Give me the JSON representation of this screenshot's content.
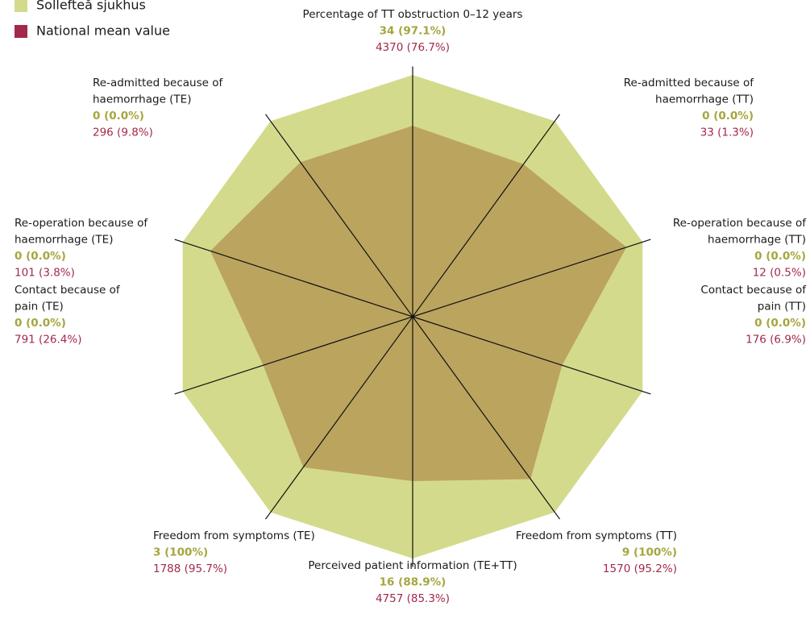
{
  "chart_data": {
    "type": "radar",
    "rlim": [
      0,
      100
    ],
    "axes": [
      [
        "Percentage of TT obstruction 0–12 years"
      ],
      [
        "Re-admitted because of",
        "haemorrhage (TT)"
      ],
      [
        "Re-operation because of",
        "haemorrhage (TT)"
      ],
      [
        "Contact because of",
        "pain (TT)"
      ],
      [
        "Freedom from symptoms (TT)"
      ],
      [
        "Perceived patient information (TE+TT)"
      ],
      [
        "Freedom from symptoms (TE)"
      ],
      [
        "Contact because of",
        "pain (TE)"
      ],
      [
        "Re-operation because of",
        "haemorrhage (TE)"
      ],
      [
        "Re-admitted because of",
        "haemorrhage (TE)"
      ]
    ],
    "series": [
      {
        "name": "Sollefteå sjukhus",
        "color": "#d4da8c",
        "label_color": "#a5a63e",
        "values": [
          100,
          100,
          100,
          100,
          100,
          100,
          100,
          100,
          100,
          100
        ],
        "labels": [
          "34 (97.1%)",
          "0 (0.0%)",
          "0 (0.0%)",
          "0 (0.0%)",
          "9 (100%)",
          "16 (88.9%)",
          "3 (100%)",
          "0 (0.0%)",
          "0 (0.0%)",
          "0 (0.0%)"
        ]
      },
      {
        "name": "National mean value",
        "color": "#a3294a",
        "fill": "#bba45e",
        "label_color": "#a3294a",
        "values": [
          79,
          78,
          93,
          65,
          83,
          68,
          77,
          65,
          88,
          79
        ],
        "labels": [
          "4370 (76.7%)",
          "33 (1.3%)",
          "12 (0.5%)",
          "176 (6.9%)",
          "1570 (95.2%)",
          "4757 (85.3%)",
          "1788 (95.7%)",
          "791 (26.4%)",
          "101 (3.8%)",
          "296 (9.8%)"
        ]
      }
    ]
  }
}
